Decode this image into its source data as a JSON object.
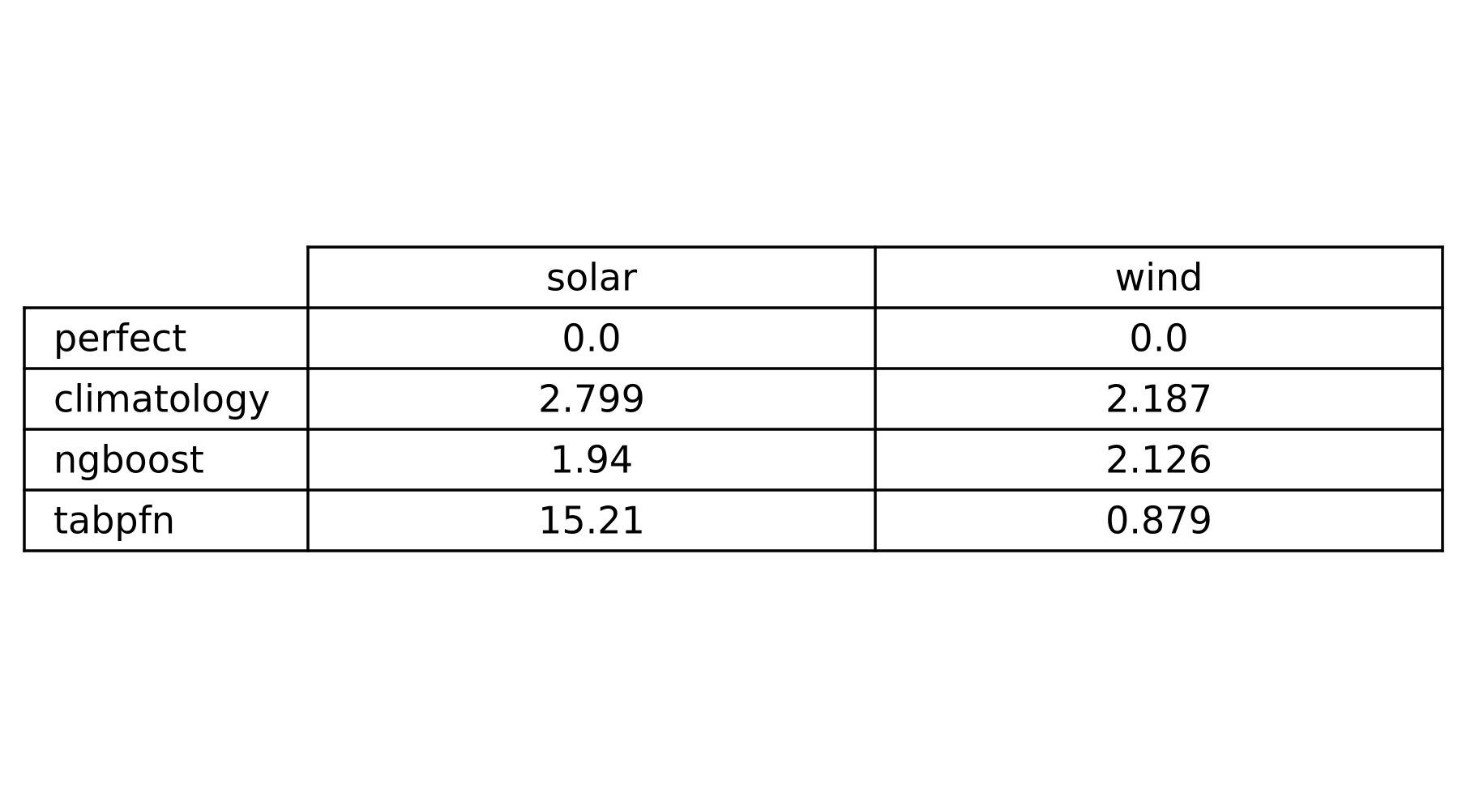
{
  "chart_data": {
    "type": "table",
    "columns": [
      "solar",
      "wind"
    ],
    "rows": [
      {
        "label": "perfect",
        "values": [
          "0.0",
          "0.0"
        ]
      },
      {
        "label": "climatology",
        "values": [
          "2.799",
          "2.187"
        ]
      },
      {
        "label": "ngboost",
        "values": [
          "1.94",
          "2.126"
        ]
      },
      {
        "label": "tabpfn",
        "values": [
          "15.21",
          "0.879"
        ]
      }
    ]
  }
}
